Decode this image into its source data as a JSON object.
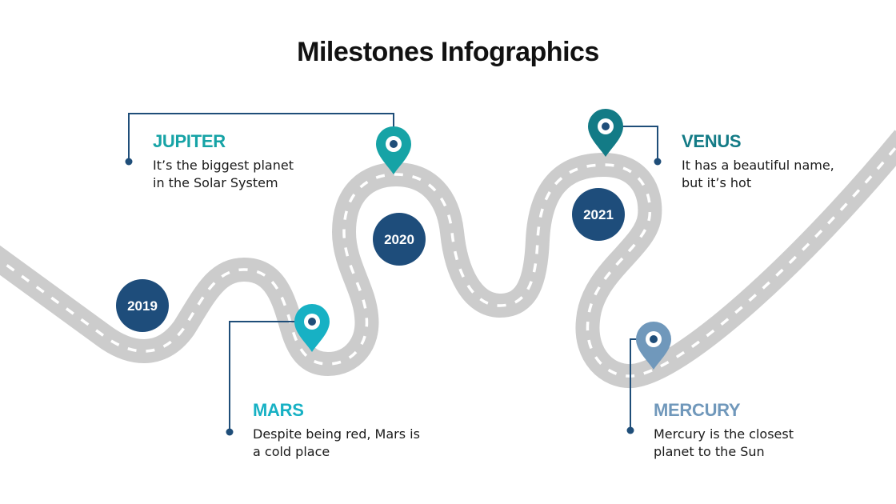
{
  "title": "Milestones Infographics",
  "colors": {
    "road": "#cccccc",
    "road_dash": "#ffffff",
    "year_circle": "#1e4d7b",
    "connector": "#1f4e79",
    "jupiter": "#16a3a6",
    "venus": "#137b86",
    "mars": "#17b1c4",
    "mercury": "#7098bb"
  },
  "years": [
    "2019",
    "2020",
    "2021"
  ],
  "milestones": [
    {
      "name": "JUPITER",
      "text": "It’s the biggest planet\nin the Solar System",
      "icon": "map-pin-icon"
    },
    {
      "name": "VENUS",
      "text": "It has a beautiful name,\nbut it’s hot",
      "icon": "map-pin-icon"
    },
    {
      "name": "MARS",
      "text": "Despite being red, Mars is\na cold place",
      "icon": "map-pin-icon"
    },
    {
      "name": "MERCURY",
      "text": "Mercury is the closest\nplanet to the Sun",
      "icon": "map-pin-icon"
    }
  ]
}
